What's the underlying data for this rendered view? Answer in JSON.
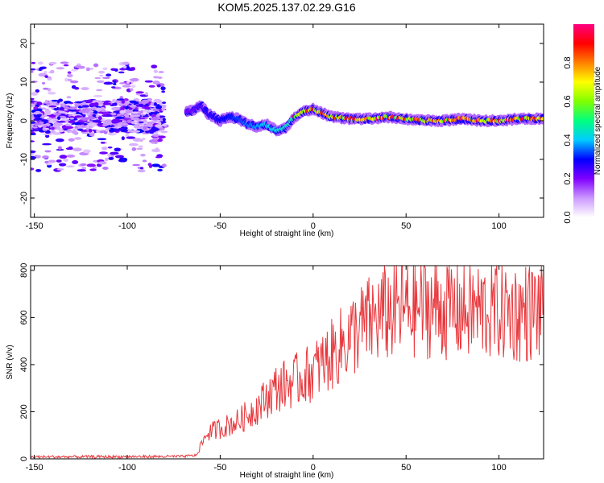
{
  "title": "KOM5.2025.137.02.29.G16",
  "chart_data": [
    {
      "type": "heatmap",
      "xlabel": "Height of straight line (km)",
      "ylabel": "Frequency (Hz)",
      "xlim": [
        -152,
        124
      ],
      "ylim": [
        -25,
        25
      ],
      "xticks": [
        -150,
        -100,
        -50,
        0,
        50,
        100
      ],
      "yticks": [
        -20,
        -10,
        0,
        10,
        20
      ],
      "colorbar": {
        "label": "Normalized spectral amplitude",
        "range": [
          0.0,
          1.0
        ],
        "ticks": [
          0.0,
          0.2,
          0.4,
          0.6,
          0.8
        ],
        "colors": [
          "#ffffff",
          "#cc99ff",
          "#8000ff",
          "#0000ff",
          "#00ccff",
          "#00ff80",
          "#80ff00",
          "#ffff00",
          "#ff8000",
          "#ff0000",
          "#ff0080"
        ]
      },
      "ridge": {
        "description_points_km_hz": [
          [
            -65,
            2.5
          ],
          [
            -60,
            4
          ],
          [
            -57,
            2
          ],
          [
            -50,
            0
          ],
          [
            -45,
            1
          ],
          [
            -40,
            0.5
          ],
          [
            -35,
            -1
          ],
          [
            -30,
            -1.5
          ],
          [
            -25,
            -1
          ],
          [
            -20,
            -2.5
          ],
          [
            -15,
            -2
          ],
          [
            -10,
            1
          ],
          [
            -5,
            2.5
          ],
          [
            0,
            3
          ],
          [
            5,
            2
          ],
          [
            10,
            1
          ],
          [
            20,
            0.5
          ],
          [
            30,
            0.5
          ],
          [
            40,
            1
          ],
          [
            50,
            0.5
          ],
          [
            60,
            0
          ],
          [
            70,
            0
          ],
          [
            80,
            0.5
          ],
          [
            90,
            0
          ],
          [
            100,
            0
          ],
          [
            110,
            0.5
          ],
          [
            124,
            0.5
          ]
        ]
      }
    },
    {
      "type": "line",
      "xlabel": "Height of straight line (km)",
      "ylabel": "SNR (v/v)",
      "xlim": [
        -152,
        124
      ],
      "ylim": [
        0,
        820
      ],
      "xticks": [
        -150,
        -100,
        -50,
        0,
        50,
        100
      ],
      "yticks": [
        0,
        200,
        400,
        600,
        800
      ],
      "color": "#e8383d",
      "envelope_km_snr": [
        [
          -152,
          8
        ],
        [
          -70,
          10
        ],
        [
          -63,
          15
        ],
        [
          -57,
          110
        ],
        [
          -50,
          130
        ],
        [
          -40,
          160
        ],
        [
          -30,
          220
        ],
        [
          -20,
          300
        ],
        [
          -10,
          330
        ],
        [
          0,
          370
        ],
        [
          10,
          440
        ],
        [
          20,
          520
        ],
        [
          30,
          580
        ],
        [
          40,
          620
        ],
        [
          50,
          640
        ],
        [
          60,
          650
        ],
        [
          70,
          640
        ],
        [
          80,
          630
        ],
        [
          90,
          630
        ],
        [
          100,
          630
        ],
        [
          110,
          620
        ],
        [
          124,
          630
        ]
      ]
    }
  ]
}
